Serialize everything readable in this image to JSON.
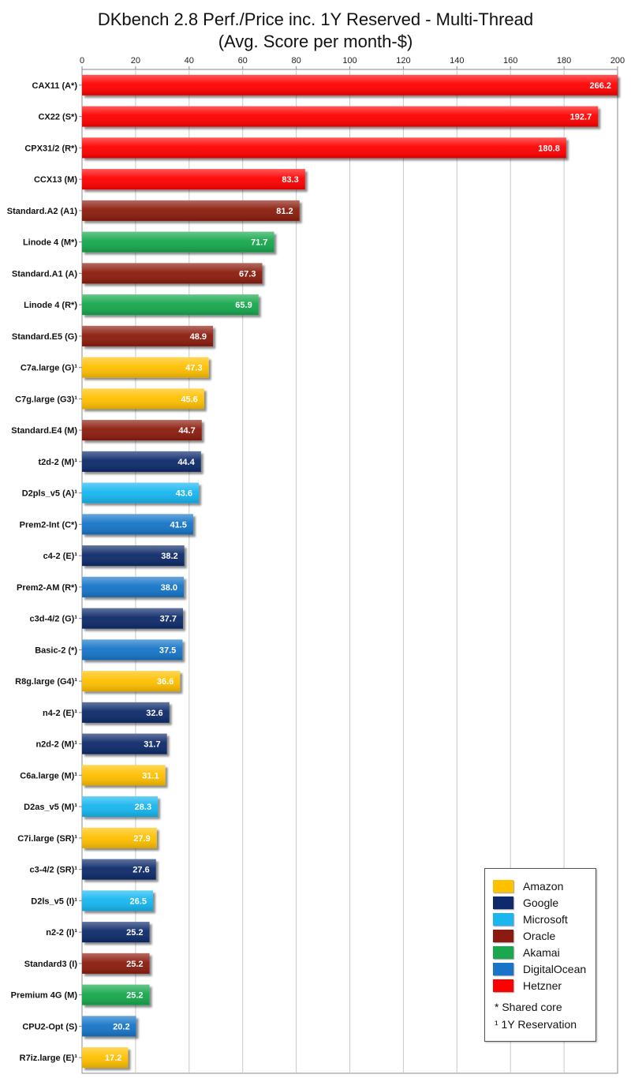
{
  "title": {
    "line1": "DKbench 2.8 Perf./Price inc. 1Y Reserved - Multi-Thread",
    "line2": "(Avg. Score per month-$)"
  },
  "colors": {
    "Amazon": "#FFC000",
    "Google": "#0F2A6A",
    "Microsoft": "#19B6F0",
    "Oracle": "#8B1A10",
    "Akamai": "#19A84E",
    "DigitalOcean": "#1874C8",
    "Hetzner": "#FF0000"
  },
  "legend": {
    "items": [
      "Amazon",
      "Google",
      "Microsoft",
      "Oracle",
      "Akamai",
      "DigitalOcean",
      "Hetzner"
    ],
    "notes": [
      "* Shared core",
      "¹ 1Y Reservation"
    ]
  },
  "chart_data": {
    "type": "bar",
    "orientation": "horizontal",
    "title": "DKbench 2.8 Perf./Price inc. 1Y Reserved - Multi-Thread (Avg. Score per month-$)",
    "xlim": [
      0,
      200
    ],
    "xticks": [
      0,
      20,
      40,
      60,
      80,
      100,
      120,
      140,
      160,
      180,
      200
    ],
    "grid": "vertical",
    "legend_position": "bottom-right",
    "categories": [
      "CAX11 (A*)",
      "CX22 (S*)",
      "CPX31/2 (R*)",
      "CCX13 (M)",
      "Standard.A2 (A1)",
      "Linode 4 (M*)",
      "Standard.A1 (A)",
      "Linode 4 (R*)",
      "Standard.E5 (G)",
      "C7a.large (G)¹",
      "C7g.large (G3)¹",
      "Standard.E4 (M)",
      "t2d-2 (M)¹",
      "D2pls_v5 (A)¹",
      "Prem2-Int (C*)",
      "c4-2 (E)¹",
      "Prem2-AM (R*)",
      "c3d-4/2 (G)¹",
      "Basic-2 (*)",
      "R8g.large (G4)¹",
      "n4-2 (E)¹",
      "n2d-2 (M)¹",
      "C6a.large (M)¹",
      "D2as_v5 (M)¹",
      "C7i.large (SR)¹",
      "c3-4/2 (SR)¹",
      "D2ls_v5 (I)¹",
      "n2-2 (I)¹",
      "Standard3 (I)",
      "Premium 4G (M)",
      "CPU2-Opt (S)",
      "R7iz.large (E)¹"
    ],
    "values": [
      266.2,
      192.7,
      180.8,
      83.3,
      81.2,
      71.7,
      67.3,
      65.9,
      48.9,
      47.3,
      45.6,
      44.7,
      44.4,
      43.6,
      41.5,
      38.2,
      38.0,
      37.7,
      37.5,
      36.6,
      32.6,
      31.7,
      31.1,
      28.3,
      27.9,
      27.6,
      26.5,
      25.2,
      25.2,
      25.2,
      20.2,
      17.2
    ],
    "value_labels": [
      "266.2",
      "192.7",
      "180.8",
      "83.3",
      "81.2",
      "71.7",
      "67.3",
      "65.9",
      "48.9",
      "47.3",
      "45.6",
      "44.7",
      "44.4",
      "43.6",
      "41.5",
      "38.2",
      "38.0",
      "37.7",
      "37.5",
      "36.6",
      "32.6",
      "31.7",
      "31.1",
      "28.3",
      "27.9",
      "27.6",
      "26.5",
      "25.2",
      "25.2",
      "25.2",
      "20.2",
      "17.2"
    ],
    "provider": [
      "Hetzner",
      "Hetzner",
      "Hetzner",
      "Hetzner",
      "Oracle",
      "Akamai",
      "Oracle",
      "Akamai",
      "Oracle",
      "Amazon",
      "Amazon",
      "Oracle",
      "Google",
      "Microsoft",
      "DigitalOcean",
      "Google",
      "DigitalOcean",
      "Google",
      "DigitalOcean",
      "Amazon",
      "Google",
      "Google",
      "Amazon",
      "Microsoft",
      "Amazon",
      "Google",
      "Microsoft",
      "Google",
      "Oracle",
      "Akamai",
      "DigitalOcean",
      "Amazon"
    ]
  }
}
